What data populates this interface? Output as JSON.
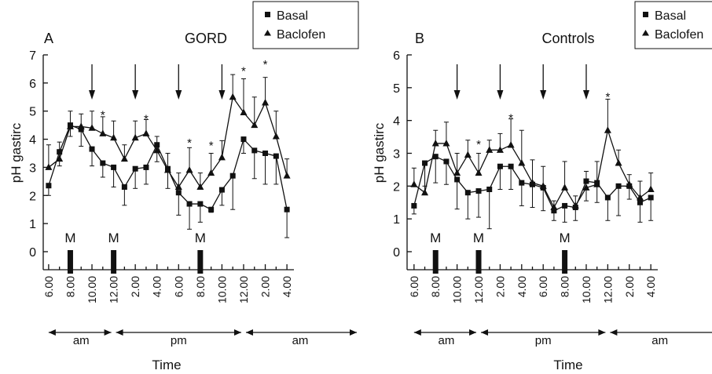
{
  "chart_data": [
    {
      "type": "line",
      "panel_label": "A",
      "title": "GORD",
      "ylabel": "pH gastirc",
      "xlabel": "Time",
      "ylim": [
        0,
        7
      ],
      "yticks": [
        "0",
        "1",
        "2",
        "3",
        "4",
        "5",
        "6",
        "7"
      ],
      "xlim": [
        5.5,
        28.5
      ],
      "xticks": [
        {
          "x": 6,
          "label": "6.00"
        },
        {
          "x": 8,
          "label": "8.00"
        },
        {
          "x": 10,
          "label": "10.00"
        },
        {
          "x": 12,
          "label": "12.00"
        },
        {
          "x": 14,
          "label": "2.00"
        },
        {
          "x": 16,
          "label": "4.00"
        },
        {
          "x": 18,
          "label": "6.00"
        },
        {
          "x": 20,
          "label": "8.00"
        },
        {
          "x": 22,
          "label": "10.00"
        },
        {
          "x": 24,
          "label": "12.00"
        },
        {
          "x": 26,
          "label": "2.00"
        },
        {
          "x": 28,
          "label": "4.00"
        }
      ],
      "periods": [
        {
          "label": "am",
          "from": 6,
          "to": 12
        },
        {
          "label": "pm",
          "from": 12,
          "to": 24
        },
        {
          "label": "am",
          "from": 24,
          "to": 28.5
        }
      ],
      "meals": [
        {
          "label": "M",
          "x": 8
        },
        {
          "label": "M",
          "x": 12
        },
        {
          "label": "M",
          "x": 20
        }
      ],
      "arrows": [
        10,
        14,
        18,
        22
      ],
      "stars": [
        {
          "label": "*",
          "x": 11,
          "y": 4.9
        },
        {
          "label": "*",
          "x": 15,
          "y": 4.75
        },
        {
          "label": "*",
          "x": 19,
          "y": 3.9
        },
        {
          "label": "*",
          "x": 21,
          "y": 3.8
        },
        {
          "label": "*",
          "x": 24,
          "y": 6.45
        },
        {
          "label": "*",
          "x": 26,
          "y": 6.7
        }
      ],
      "series": [
        {
          "name": "Basal",
          "marker": "square",
          "x": [
            6,
            7,
            8,
            9,
            10,
            11,
            12,
            13,
            14,
            15,
            16,
            17,
            18,
            19,
            20,
            21,
            22,
            23,
            24,
            25,
            26,
            27,
            28
          ],
          "values": [
            2.35,
            3.55,
            4.5,
            4.35,
            3.65,
            3.15,
            3.0,
            2.3,
            2.95,
            3.0,
            3.8,
            2.95,
            2.1,
            1.7,
            1.7,
            1.5,
            2.2,
            2.7,
            4.0,
            3.6,
            3.5,
            3.4,
            1.5
          ],
          "err": [
            0.35,
            0.5,
            0.4,
            0.6,
            0.6,
            0.5,
            0.7,
            0.65,
            0.7,
            0.6,
            0.6,
            0.7,
            0.8,
            0.9,
            0.65,
            0.1,
            0.55,
            1.2,
            0.5,
            1.0,
            1.1,
            1.0,
            1.0
          ]
        },
        {
          "name": "Baclofen",
          "marker": "triangle",
          "x": [
            6,
            7,
            8,
            9,
            10,
            11,
            12,
            13,
            14,
            15,
            16,
            17,
            18,
            19,
            20,
            21,
            22,
            23,
            24,
            25,
            26,
            27,
            28
          ],
          "values": [
            3.0,
            3.3,
            4.45,
            4.45,
            4.4,
            4.2,
            4.05,
            3.3,
            4.05,
            4.2,
            3.6,
            2.9,
            2.3,
            2.9,
            2.3,
            2.8,
            3.35,
            5.5,
            4.95,
            4.5,
            5.3,
            4.1,
            2.7
          ],
          "err": [
            0.8,
            0.6,
            0.55,
            0.45,
            0.6,
            0.6,
            0.6,
            0.5,
            0.6,
            0.5,
            0.5,
            0.6,
            0.5,
            0.8,
            0.5,
            0.7,
            0.6,
            0.8,
            1.2,
            1.0,
            0.9,
            0.9,
            0.6
          ]
        }
      ]
    },
    {
      "type": "line",
      "panel_label": "B",
      "title": "Controls",
      "ylabel": "pH gastirc",
      "xlabel": "Time",
      "ylim": [
        0,
        6
      ],
      "yticks": [
        "0",
        "1",
        "2",
        "3",
        "4",
        "5",
        "6"
      ],
      "xlim": [
        5.5,
        28.5
      ],
      "xticks": [
        {
          "x": 6,
          "label": "6.00"
        },
        {
          "x": 8,
          "label": "8.00"
        },
        {
          "x": 10,
          "label": "10.00"
        },
        {
          "x": 12,
          "label": "12.00"
        },
        {
          "x": 14,
          "label": "2.00"
        },
        {
          "x": 16,
          "label": "4.00"
        },
        {
          "x": 18,
          "label": "6.00"
        },
        {
          "x": 20,
          "label": "8.00"
        },
        {
          "x": 22,
          "label": "10.00"
        },
        {
          "x": 24,
          "label": "12.00"
        },
        {
          "x": 26,
          "label": "2.00"
        },
        {
          "x": 28,
          "label": "4.00"
        }
      ],
      "periods": [
        {
          "label": "am",
          "from": 6,
          "to": 12
        },
        {
          "label": "pm",
          "from": 12,
          "to": 24
        },
        {
          "label": "am",
          "from": 24,
          "to": 28.5
        }
      ],
      "meals": [
        {
          "label": "M",
          "x": 8
        },
        {
          "label": "M",
          "x": 12
        },
        {
          "label": "M",
          "x": 20
        }
      ],
      "arrows": [
        10,
        14,
        18,
        22
      ],
      "stars": [
        {
          "label": "*",
          "x": 12,
          "y": 3.3
        },
        {
          "label": "*",
          "x": 15,
          "y": 4.1
        },
        {
          "label": "*",
          "x": 24,
          "y": 4.75
        }
      ],
      "series": [
        {
          "name": "Basal",
          "marker": "square",
          "x": [
            6,
            7,
            8,
            9,
            10,
            11,
            12,
            13,
            14,
            15,
            16,
            17,
            18,
            19,
            20,
            21,
            22,
            23,
            24,
            25,
            26,
            27,
            28
          ],
          "values": [
            1.4,
            2.7,
            2.9,
            2.75,
            2.2,
            1.8,
            1.85,
            1.9,
            2.6,
            2.6,
            2.1,
            2.05,
            1.95,
            1.25,
            1.4,
            1.35,
            2.15,
            2.1,
            1.65,
            2.0,
            2.0,
            1.5,
            1.65
          ],
          "err": [
            0.25,
            0.7,
            0.8,
            0.7,
            0.9,
            0.8,
            0.8,
            1.2,
            0.7,
            0.7,
            0.7,
            0.7,
            0.7,
            0.3,
            0.5,
            0.4,
            0.6,
            0.6,
            0.7,
            0.9,
            0.4,
            0.6,
            0.7
          ]
        },
        {
          "name": "Baclofen",
          "marker": "triangle",
          "x": [
            6,
            7,
            8,
            9,
            10,
            11,
            12,
            13,
            14,
            15,
            16,
            17,
            18,
            19,
            20,
            21,
            22,
            23,
            24,
            25,
            26,
            27,
            28
          ],
          "values": [
            2.05,
            1.8,
            3.3,
            3.3,
            2.4,
            2.95,
            2.4,
            3.1,
            3.1,
            3.25,
            2.7,
            2.1,
            2.0,
            1.35,
            1.95,
            1.4,
            1.95,
            2.05,
            3.7,
            2.7,
            2.05,
            1.65,
            1.9
          ],
          "err": [
            0.5,
            0.9,
            0.4,
            0.65,
            0.6,
            0.45,
            0.6,
            0.3,
            0.5,
            0.8,
            1.0,
            0.7,
            0.6,
            0.2,
            0.8,
            0.3,
            0.5,
            0.7,
            0.95,
            0.4,
            0.3,
            0.5,
            0.5
          ]
        }
      ]
    }
  ]
}
